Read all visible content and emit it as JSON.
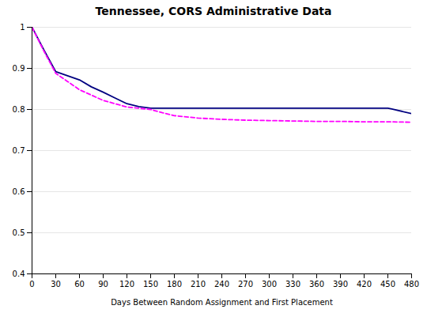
{
  "chart_data": {
    "type": "line",
    "title": "Tennessee, CORS Administrative Data",
    "xlabel": "Days Between Random Assignment and First Placement",
    "xlim": [
      0,
      480
    ],
    "ylim": [
      0.4,
      1.0
    ],
    "xticks": [
      0,
      30,
      60,
      90,
      120,
      150,
      180,
      210,
      240,
      270,
      300,
      330,
      360,
      390,
      420,
      450,
      480
    ],
    "yticks": [
      0.4,
      0.5,
      0.6,
      0.7,
      0.8,
      0.9,
      1.0
    ],
    "grid": true,
    "series": [
      {
        "color": "#000080",
        "line_style": "solid",
        "x": [
          0,
          15,
          30,
          45,
          60,
          75,
          90,
          105,
          120,
          135,
          150,
          160,
          450,
          455,
          480
        ],
        "values": [
          1.0,
          0.945,
          0.892,
          0.882,
          0.872,
          0.855,
          0.842,
          0.828,
          0.814,
          0.807,
          0.803,
          0.803,
          0.803,
          0.801,
          0.79
        ]
      },
      {
        "color": "#FF00FF",
        "line_style": "dashed",
        "x": [
          0,
          15,
          30,
          45,
          60,
          75,
          90,
          105,
          120,
          135,
          150,
          165,
          180,
          195,
          210,
          240,
          270,
          300,
          330,
          360,
          390,
          420,
          450,
          480
        ],
        "values": [
          1.0,
          0.942,
          0.888,
          0.868,
          0.848,
          0.835,
          0.822,
          0.814,
          0.806,
          0.803,
          0.8,
          0.792,
          0.785,
          0.782,
          0.779,
          0.776,
          0.774,
          0.773,
          0.772,
          0.771,
          0.771,
          0.77,
          0.77,
          0.769
        ]
      }
    ]
  }
}
